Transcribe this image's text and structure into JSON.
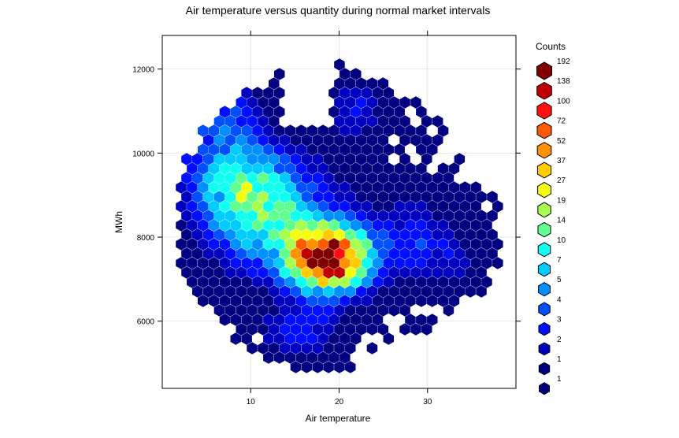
{
  "chart_data": {
    "type": "hexbin",
    "title": "Air temperature versus quantity during normal market intervals",
    "xlabel": "Air temperature",
    "ylabel": "MWh",
    "xlim": [
      0,
      40
    ],
    "ylim": [
      4400,
      12800
    ],
    "xticks": [
      10,
      20,
      30
    ],
    "yticks": [
      6000,
      8000,
      10000,
      12000
    ],
    "grid": true,
    "legend": {
      "title": "Counts",
      "position": "right",
      "labels": [
        "192",
        "138",
        "100",
        "72",
        "52",
        "37",
        "27",
        "19",
        "14",
        "10",
        "7",
        "5",
        "4",
        "3",
        "2",
        "1",
        "1"
      ],
      "colors": [
        "#800000",
        "#c00000",
        "#ff1010",
        "#ff5a00",
        "#ff9200",
        "#ffcc00",
        "#f4ff10",
        "#a8ff50",
        "#60ff90",
        "#10fff0",
        "#00ccff",
        "#0090ff",
        "#0050ff",
        "#0010ff",
        "#0000c0",
        "#000080",
        "#000080"
      ]
    }
  }
}
